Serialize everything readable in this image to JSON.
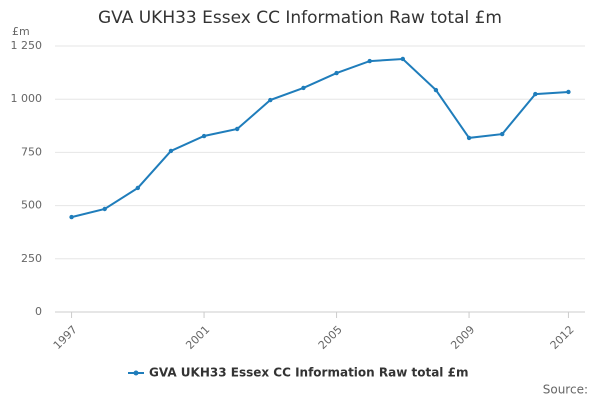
{
  "chart_data": {
    "type": "line",
    "title": "GVA UKH33 Essex CC Information Raw total £m",
    "y_label": "£m",
    "x": [
      1997,
      1998,
      1999,
      2000,
      2001,
      2002,
      2003,
      2004,
      2005,
      2006,
      2007,
      2008,
      2009,
      2010,
      2011,
      2012
    ],
    "series": [
      {
        "name": "GVA UKH33 Essex CC Information Raw total £m",
        "color": "#1f7dbb",
        "values": [
          446,
          484,
          583,
          757,
          827,
          860,
          996,
          1053,
          1123,
          1179,
          1189,
          1043,
          818,
          836,
          1024,
          1034
        ]
      }
    ],
    "xlim": [
      1996.5,
      2012.5
    ],
    "xticks": [
      1997,
      2001,
      2005,
      2009,
      2012
    ],
    "ylim": [
      0,
      1250
    ],
    "yticks": [
      0,
      250,
      500,
      750,
      {
        "value": 1000,
        "label": "1 000"
      },
      {
        "value": 1250,
        "label": "1 250"
      }
    ],
    "grid": true,
    "legend": "bottom",
    "source": "Source:"
  }
}
